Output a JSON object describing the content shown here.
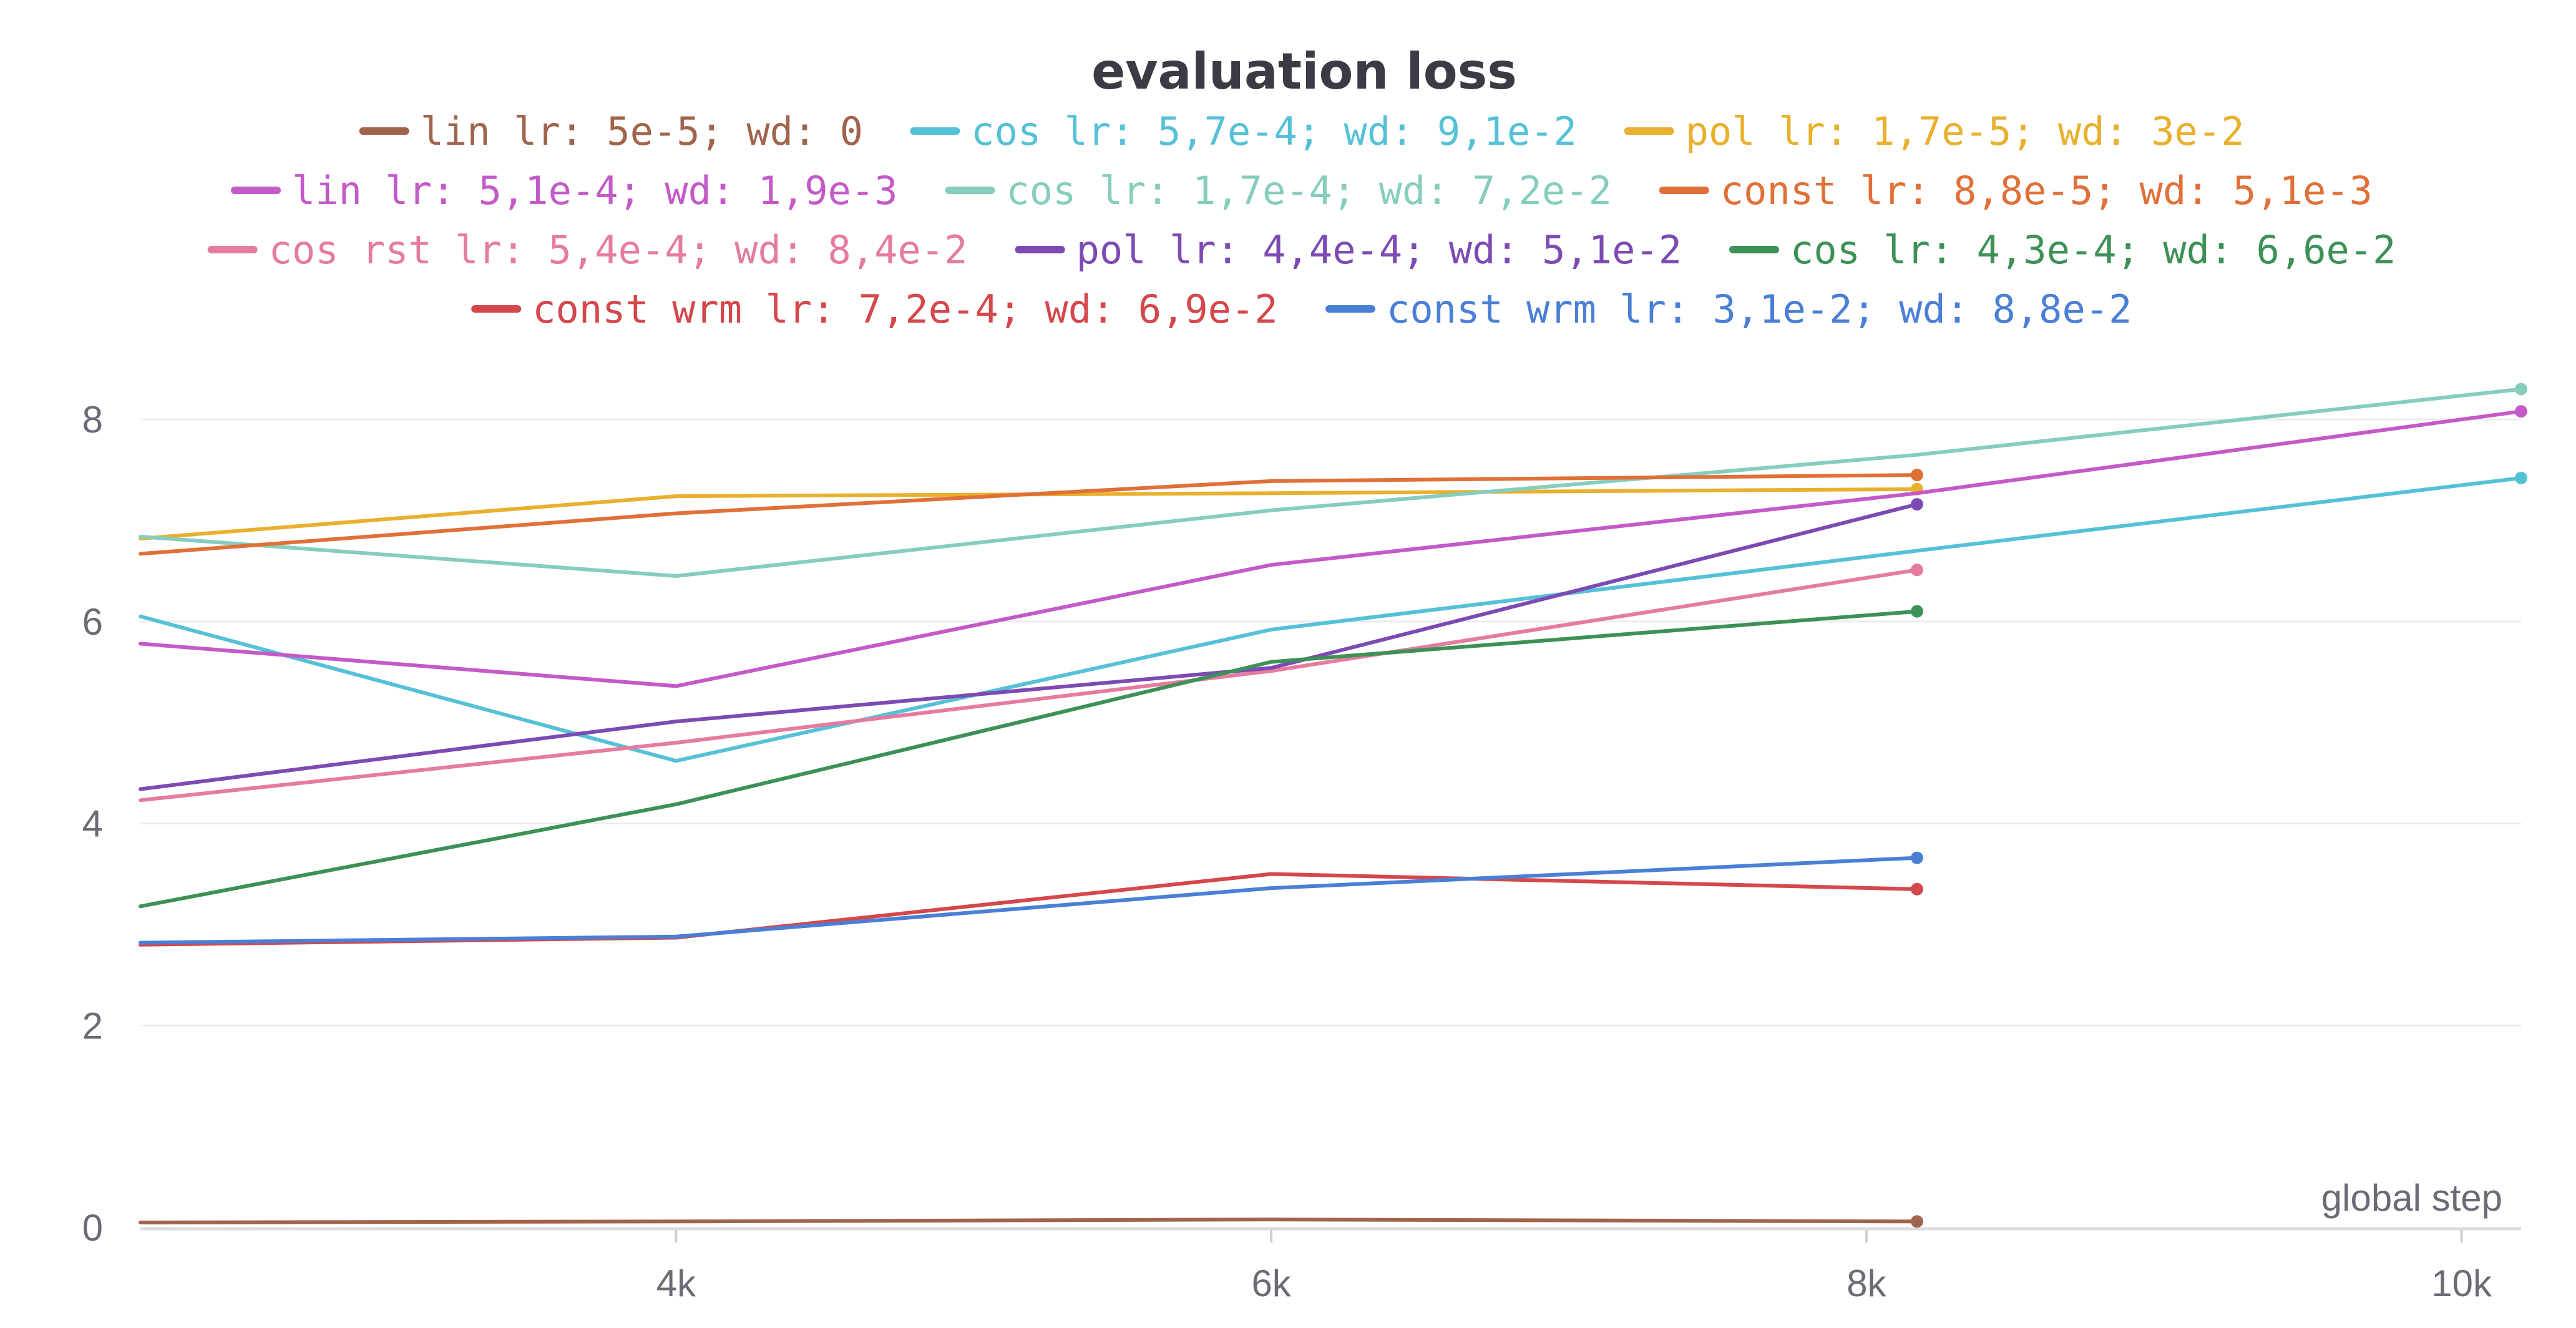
{
  "chart_data": {
    "type": "line",
    "title": "evaluation loss",
    "xlabel": "global step",
    "ylabel": "",
    "xlim": [
      2200,
      10200
    ],
    "ylim": [
      0,
      8.6
    ],
    "x_ticks": [
      {
        "value": 4000,
        "label": "4k"
      },
      {
        "value": 6000,
        "label": "6k"
      },
      {
        "value": 8000,
        "label": "8k"
      },
      {
        "value": 10000,
        "label": "10k"
      }
    ],
    "y_ticks": [
      {
        "value": 0,
        "label": "0"
      },
      {
        "value": 2,
        "label": "2"
      },
      {
        "value": 4,
        "label": "4"
      },
      {
        "value": 6,
        "label": "6"
      },
      {
        "value": 8,
        "label": "8"
      }
    ],
    "grid": true,
    "legend_placement": "top",
    "legend_rows": [
      [
        0,
        1,
        2
      ],
      [
        3,
        4,
        5
      ],
      [
        6,
        7,
        8
      ],
      [
        9,
        10
      ]
    ],
    "series": [
      {
        "name": "lin lr: 5e-5; wd: 0",
        "color": "#a0644c",
        "x": [
          2200,
          4000,
          6000,
          8170
        ],
        "y": [
          0.05,
          0.06,
          0.08,
          0.06
        ]
      },
      {
        "name": "cos lr: 5,7e-4; wd: 9,1e-2",
        "color": "#55c1d6",
        "x": [
          2200,
          4000,
          6000,
          8170,
          10200
        ],
        "y": [
          6.05,
          4.62,
          5.92,
          6.7,
          7.42
        ]
      },
      {
        "name": "pol lr: 1,7e-5; wd: 3e-2",
        "color": "#e8b02e",
        "x": [
          2200,
          4000,
          6000,
          8170
        ],
        "y": [
          6.82,
          7.24,
          7.27,
          7.31
        ]
      },
      {
        "name": "lin lr: 5,1e-4; wd: 1,9e-3",
        "color": "#c35ac8",
        "x": [
          2200,
          4000,
          6000,
          8170,
          10200
        ],
        "y": [
          5.78,
          5.36,
          6.56,
          7.27,
          8.08
        ]
      },
      {
        "name": "cos lr: 1,7e-4; wd: 7,2e-2",
        "color": "#86cdbe",
        "x": [
          2200,
          4000,
          6000,
          8170,
          10200
        ],
        "y": [
          6.84,
          6.45,
          7.1,
          7.65,
          8.3
        ]
      },
      {
        "name": "const lr: 8,8e-5; wd: 5,1e-3",
        "color": "#e07038",
        "x": [
          2200,
          4000,
          6000,
          8170
        ],
        "y": [
          6.67,
          7.07,
          7.39,
          7.45
        ]
      },
      {
        "name": "cos rst lr: 5,4e-4; wd: 8,4e-2",
        "color": "#e57ba0",
        "x": [
          2200,
          4000,
          6000,
          8170
        ],
        "y": [
          4.23,
          4.8,
          5.51,
          6.51
        ]
      },
      {
        "name": "pol lr: 4,4e-4; wd: 5,1e-2",
        "color": "#7d4ab4",
        "x": [
          2200,
          4000,
          6000,
          8170
        ],
        "y": [
          4.34,
          5.01,
          5.54,
          7.16
        ]
      },
      {
        "name": "cos lr: 4,3e-4; wd: 6,6e-2",
        "color": "#3d9156",
        "x": [
          2200,
          4000,
          6000,
          8170
        ],
        "y": [
          3.18,
          4.19,
          5.6,
          6.1
        ]
      },
      {
        "name": "const wrm lr: 7,2e-4; wd: 6,9e-2",
        "color": "#d4474b",
        "x": [
          2200,
          4000,
          6000,
          8170
        ],
        "y": [
          2.8,
          2.87,
          3.5,
          3.35
        ]
      },
      {
        "name": "const wrm lr: 3,1e-2; wd: 8,8e-2",
        "color": "#4a7fd6",
        "x": [
          2200,
          4000,
          6000,
          8170
        ],
        "y": [
          2.82,
          2.88,
          3.36,
          3.66
        ]
      }
    ]
  }
}
